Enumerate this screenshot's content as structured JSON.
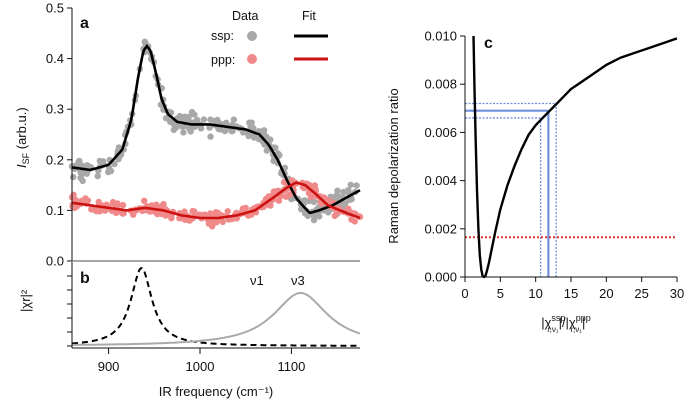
{
  "colors": {
    "ssp_data": "#a8a8a8",
    "ppp_data": "#f08a8a",
    "ssp_fit": "#000000",
    "ppp_fit": "#cc1111",
    "mode_curve": "#aaaaaa",
    "blue_lines": "#6f8fdc",
    "red_line": "#dd3333"
  },
  "chart_data": [
    {
      "panel": "a",
      "type": "scatter",
      "xlabel": "IR frequency (cm⁻¹)",
      "ylabel_main": "I",
      "ylabel_sub": "SF",
      "ylabel_unit": " (arb.u.)",
      "xlim": [
        860,
        1175
      ],
      "ylim": [
        0,
        0.5
      ],
      "xticks": [
        900,
        1000,
        1100
      ],
      "xtick_labels": [
        "900",
        "1000",
        "1100"
      ],
      "yticks": [
        0,
        0.1,
        0.2,
        0.3,
        0.4,
        0.5
      ],
      "ytick_labels": [
        "0.0",
        "0.1",
        "0.2",
        "0.3",
        "0.4",
        "0.5"
      ],
      "legend": {
        "data_header": "Data",
        "fit_header": "Fit",
        "rows": [
          {
            "label": "ssp:",
            "series": "ssp"
          },
          {
            "label": "ppp:",
            "series": "ppp"
          }
        ]
      },
      "series": [
        {
          "name": "ssp",
          "fit": {
            "x": [
              860,
              880,
              900,
              915,
              925,
              932,
              938,
              942,
              946,
              952,
              958,
              965,
              975,
              990,
              1010,
              1030,
              1050,
              1065,
              1075,
              1085,
              1095,
              1105,
              1112,
              1120,
              1130,
              1145,
              1160,
              1175
            ],
            "y": [
              0.185,
              0.18,
              0.19,
              0.22,
              0.28,
              0.36,
              0.415,
              0.425,
              0.415,
              0.37,
              0.32,
              0.29,
              0.275,
              0.27,
              0.27,
              0.265,
              0.26,
              0.25,
              0.23,
              0.2,
              0.16,
              0.125,
              0.11,
              0.095,
              0.1,
              0.11,
              0.125,
              0.14
            ]
          }
        },
        {
          "name": "ppp",
          "fit": {
            "x": [
              860,
              880,
              900,
              920,
              940,
              960,
              980,
              1000,
              1020,
              1040,
              1060,
              1080,
              1095,
              1105,
              1115,
              1125,
              1140,
              1160,
              1175
            ],
            "y": [
              0.115,
              0.11,
              0.105,
              0.1,
              0.105,
              0.1,
              0.09,
              0.085,
              0.085,
              0.09,
              0.1,
              0.125,
              0.145,
              0.155,
              0.15,
              0.135,
              0.11,
              0.095,
              0.085
            ]
          }
        }
      ]
    },
    {
      "panel": "b",
      "type": "line",
      "xlabel": "IR frequency (cm⁻¹)",
      "ylabel": "|χr|²",
      "xlim": [
        860,
        1175
      ],
      "annotations": [
        "ν1",
        "ν3"
      ],
      "series": [
        {
          "name": "ν1",
          "style": "dashed",
          "center": 936,
          "width": 14
        },
        {
          "name": "ν3",
          "style": "solid",
          "center": 1110,
          "width": 36,
          "amplitude": 0.68
        }
      ]
    },
    {
      "panel": "c",
      "type": "line",
      "xlabel_parts": [
        "|χ",
        "ssp",
        "r,ν₁",
        "|/|χ",
        "ppp",
        "r,ν₁",
        "|"
      ],
      "ylabel": "Raman depolarization ratio",
      "xlim": [
        0,
        30
      ],
      "ylim": [
        0,
        0.01
      ],
      "xticks": [
        0,
        5,
        10,
        15,
        20,
        25,
        30
      ],
      "xtick_labels": [
        "0",
        "5",
        "10",
        "15",
        "20",
        "25",
        "30"
      ],
      "yticks": [
        0,
        0.002,
        0.004,
        0.006,
        0.008,
        0.01
      ],
      "ytick_labels": [
        "0.000",
        "0.002",
        "0.004",
        "0.006",
        "0.008",
        "0.010"
      ],
      "curve": {
        "x": [
          1.2,
          1.35,
          1.5,
          1.7,
          1.9,
          2.1,
          2.3,
          2.5,
          2.7,
          2.9,
          3.1,
          3.4,
          3.8,
          4.3,
          5,
          6,
          7,
          8,
          9,
          10,
          11,
          12,
          13,
          14,
          15,
          16,
          18,
          20,
          22,
          24,
          26,
          28,
          30
        ],
        "y": [
          0.01,
          0.0078,
          0.0058,
          0.0036,
          0.002,
          0.0009,
          0.0003,
          3e-05,
          0.0,
          5e-05,
          0.00025,
          0.0006,
          0.0012,
          0.0019,
          0.0028,
          0.0038,
          0.0046,
          0.0053,
          0.0059,
          0.0063,
          0.0066,
          0.0069,
          0.0072,
          0.0075,
          0.0078,
          0.008,
          0.0084,
          0.0088,
          0.0091,
          0.0093,
          0.0095,
          0.0097,
          0.0099
        ]
      },
      "depolarization_levels": [
        0.0066,
        0.0069,
        0.0072
      ],
      "ratio_values": [
        10.7,
        11.8,
        12.9
      ],
      "red_level": 0.00165
    }
  ]
}
